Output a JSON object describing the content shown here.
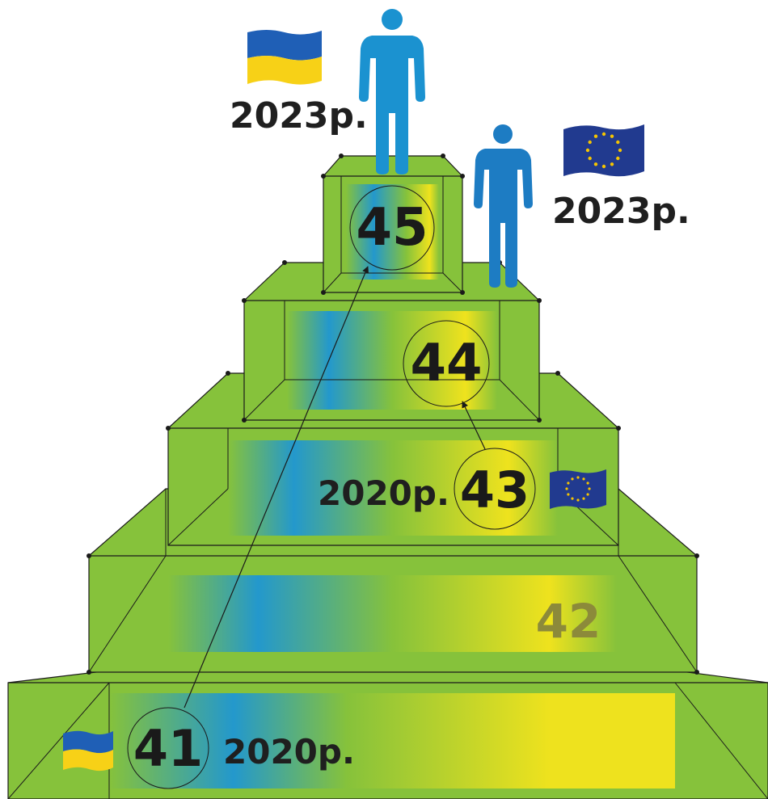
{
  "colors": {
    "green": "#86c23b",
    "green_light": "#8fca40",
    "blue": "#1e96d4",
    "yellow": "#f4e41c",
    "ua_blue": "#1f5fb6",
    "ua_yellow": "#f7d117",
    "eu_blue": "#213a8f",
    "eu_star": "#f5c400",
    "person_ua": "#1b92d0",
    "person_eu": "#1d7cc3",
    "line": "#1a1a1a",
    "muted_number": "#8c8a3a"
  },
  "steps": [
    {
      "id": "step-1",
      "value": "41"
    },
    {
      "id": "step-2",
      "value": "42"
    },
    {
      "id": "step-3",
      "value": "43"
    },
    {
      "id": "step-4",
      "value": "44"
    },
    {
      "id": "step-5",
      "value": "45"
    }
  ],
  "labels": {
    "ukraine_2020": "2020р.",
    "eu_2020": "2020р.",
    "ukraine_2023": "2023р.",
    "eu_2023": "2023р."
  },
  "icons": {
    "ukraine_flag": "ukraine-flag-icon",
    "eu_flag": "eu-flag-icon",
    "person": "person-icon"
  }
}
